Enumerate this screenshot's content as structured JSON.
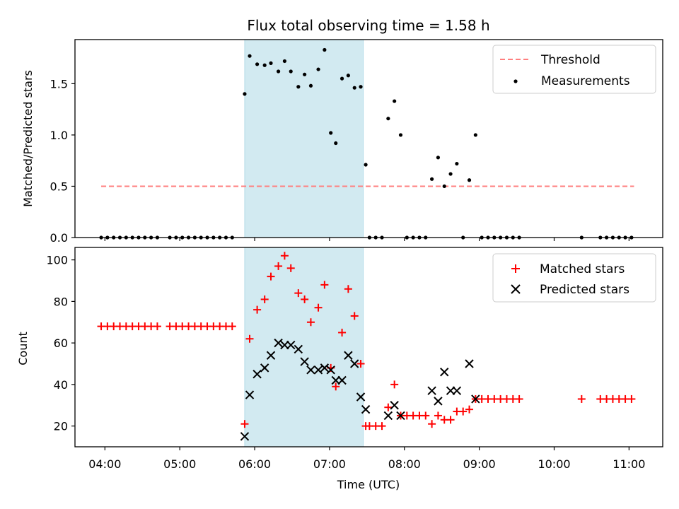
{
  "chart_data": {
    "type": "scatter",
    "title": "Flux total observing time = 1.58 h",
    "xlabel": "Time (UTC)",
    "x_ticks": [
      "04:00",
      "05:00",
      "06:00",
      "07:00",
      "08:00",
      "09:00",
      "10:00",
      "11:00"
    ],
    "x_range": [
      "03:36",
      "11:27"
    ],
    "shaded_interval": {
      "start": "05:52",
      "end": "07:27",
      "color": "#add8e6"
    },
    "top": {
      "ylabel": "Matched/Predicted stars",
      "ylim": [
        0,
        1.93
      ],
      "y_ticks": [
        "0.0",
        "0.5",
        "1.0",
        "1.5"
      ],
      "legend_position": "top-right",
      "threshold": {
        "name": "Threshold",
        "value": 0.5,
        "x_start": "03:57",
        "x_end": "11:04",
        "color": "#ff7f7f",
        "style": "dashed"
      },
      "measurements": {
        "name": "Measurements",
        "color": "#000000",
        "points": [
          [
            "03:57",
            0
          ],
          [
            "04:02",
            0
          ],
          [
            "04:07",
            0
          ],
          [
            "04:12",
            0
          ],
          [
            "04:17",
            0
          ],
          [
            "04:22",
            0
          ],
          [
            "04:27",
            0
          ],
          [
            "04:32",
            0
          ],
          [
            "04:37",
            0
          ],
          [
            "04:42",
            0
          ],
          [
            "04:52",
            0
          ],
          [
            "04:57",
            0
          ],
          [
            "05:02",
            0
          ],
          [
            "05:07",
            0
          ],
          [
            "05:12",
            0
          ],
          [
            "05:17",
            0
          ],
          [
            "05:22",
            0
          ],
          [
            "05:27",
            0
          ],
          [
            "05:32",
            0
          ],
          [
            "05:37",
            0
          ],
          [
            "05:42",
            0
          ],
          [
            "05:52",
            1.4
          ],
          [
            "05:56",
            1.77
          ],
          [
            "06:02",
            1.69
          ],
          [
            "06:08",
            1.68
          ],
          [
            "06:13",
            1.7
          ],
          [
            "06:19",
            1.62
          ],
          [
            "06:24",
            1.72
          ],
          [
            "06:29",
            1.62
          ],
          [
            "06:35",
            1.47
          ],
          [
            "06:40",
            1.59
          ],
          [
            "06:45",
            1.48
          ],
          [
            "06:51",
            1.64
          ],
          [
            "06:56",
            1.83
          ],
          [
            "07:01",
            1.02
          ],
          [
            "07:05",
            0.92
          ],
          [
            "07:10",
            1.55
          ],
          [
            "07:15",
            1.58
          ],
          [
            "07:20",
            1.46
          ],
          [
            "07:25",
            1.47
          ],
          [
            "07:29",
            0.71
          ],
          [
            "07:32",
            0
          ],
          [
            "07:37",
            0
          ],
          [
            "07:42",
            0
          ],
          [
            "07:47",
            1.16
          ],
          [
            "07:52",
            1.33
          ],
          [
            "07:57",
            1.0
          ],
          [
            "08:02",
            0
          ],
          [
            "08:07",
            0
          ],
          [
            "08:12",
            0
          ],
          [
            "08:17",
            0
          ],
          [
            "08:22",
            0.57
          ],
          [
            "08:27",
            0.78
          ],
          [
            "08:32",
            0.5
          ],
          [
            "08:37",
            0.62
          ],
          [
            "08:42",
            0.72
          ],
          [
            "08:47",
            0
          ],
          [
            "08:52",
            0.56
          ],
          [
            "08:57",
            1.0
          ],
          [
            "09:02",
            0
          ],
          [
            "09:07",
            0
          ],
          [
            "09:12",
            0
          ],
          [
            "09:17",
            0
          ],
          [
            "09:22",
            0
          ],
          [
            "09:27",
            0
          ],
          [
            "09:32",
            0
          ],
          [
            "10:22",
            0
          ],
          [
            "10:37",
            0
          ],
          [
            "10:42",
            0
          ],
          [
            "10:47",
            0
          ],
          [
            "10:52",
            0
          ],
          [
            "10:57",
            0
          ],
          [
            "11:02",
            0
          ]
        ]
      }
    },
    "bottom": {
      "ylabel": "Count",
      "ylim": [
        10,
        106
      ],
      "y_ticks": [
        "20",
        "40",
        "60",
        "80",
        "100"
      ],
      "legend_position": "top-right",
      "series": [
        {
          "name": "Matched stars",
          "marker": "plus",
          "color": "#ff0000",
          "points": [
            [
              "03:57",
              68
            ],
            [
              "04:02",
              68
            ],
            [
              "04:07",
              68
            ],
            [
              "04:12",
              68
            ],
            [
              "04:17",
              68
            ],
            [
              "04:22",
              68
            ],
            [
              "04:27",
              68
            ],
            [
              "04:32",
              68
            ],
            [
              "04:37",
              68
            ],
            [
              "04:42",
              68
            ],
            [
              "04:52",
              68
            ],
            [
              "04:57",
              68
            ],
            [
              "05:02",
              68
            ],
            [
              "05:07",
              68
            ],
            [
              "05:12",
              68
            ],
            [
              "05:17",
              68
            ],
            [
              "05:22",
              68
            ],
            [
              "05:27",
              68
            ],
            [
              "05:32",
              68
            ],
            [
              "05:37",
              68
            ],
            [
              "05:42",
              68
            ],
            [
              "05:52",
              21
            ],
            [
              "05:56",
              62
            ],
            [
              "06:02",
              76
            ],
            [
              "06:08",
              81
            ],
            [
              "06:13",
              92
            ],
            [
              "06:19",
              97
            ],
            [
              "06:24",
              102
            ],
            [
              "06:29",
              96
            ],
            [
              "06:35",
              84
            ],
            [
              "06:40",
              81
            ],
            [
              "06:45",
              70
            ],
            [
              "06:51",
              77
            ],
            [
              "06:56",
              88
            ],
            [
              "07:01",
              48
            ],
            [
              "07:05",
              39
            ],
            [
              "07:10",
              65
            ],
            [
              "07:15",
              86
            ],
            [
              "07:20",
              73
            ],
            [
              "07:25",
              50
            ],
            [
              "07:29",
              20
            ],
            [
              "07:32",
              20
            ],
            [
              "07:37",
              20
            ],
            [
              "07:42",
              20
            ],
            [
              "07:47",
              29
            ],
            [
              "07:52",
              40
            ],
            [
              "07:57",
              25
            ],
            [
              "08:02",
              25
            ],
            [
              "08:07",
              25
            ],
            [
              "08:12",
              25
            ],
            [
              "08:17",
              25
            ],
            [
              "08:22",
              21
            ],
            [
              "08:27",
              25
            ],
            [
              "08:32",
              23
            ],
            [
              "08:37",
              23
            ],
            [
              "08:42",
              27
            ],
            [
              "08:47",
              27
            ],
            [
              "08:52",
              28
            ],
            [
              "08:57",
              33
            ],
            [
              "09:02",
              33
            ],
            [
              "09:07",
              33
            ],
            [
              "09:12",
              33
            ],
            [
              "09:17",
              33
            ],
            [
              "09:22",
              33
            ],
            [
              "09:27",
              33
            ],
            [
              "09:32",
              33
            ],
            [
              "10:22",
              33
            ],
            [
              "10:37",
              33
            ],
            [
              "10:42",
              33
            ],
            [
              "10:47",
              33
            ],
            [
              "10:52",
              33
            ],
            [
              "10:57",
              33
            ],
            [
              "11:02",
              33
            ]
          ]
        },
        {
          "name": "Predicted stars",
          "marker": "x",
          "color": "#000000",
          "points": [
            [
              "05:52",
              15
            ],
            [
              "05:56",
              35
            ],
            [
              "06:02",
              45
            ],
            [
              "06:08",
              48
            ],
            [
              "06:13",
              54
            ],
            [
              "06:19",
              60
            ],
            [
              "06:24",
              59
            ],
            [
              "06:29",
              59
            ],
            [
              "06:35",
              57
            ],
            [
              "06:40",
              51
            ],
            [
              "06:45",
              47
            ],
            [
              "06:51",
              47
            ],
            [
              "06:56",
              48
            ],
            [
              "07:01",
              47
            ],
            [
              "07:05",
              42
            ],
            [
              "07:10",
              42
            ],
            [
              "07:15",
              54
            ],
            [
              "07:20",
              50
            ],
            [
              "07:25",
              34
            ],
            [
              "07:29",
              28
            ],
            [
              "07:47",
              25
            ],
            [
              "07:52",
              30
            ],
            [
              "07:57",
              25
            ],
            [
              "08:22",
              37
            ],
            [
              "08:27",
              32
            ],
            [
              "08:32",
              46
            ],
            [
              "08:37",
              37
            ],
            [
              "08:42",
              37
            ],
            [
              "08:52",
              50
            ],
            [
              "08:57",
              33
            ]
          ]
        }
      ]
    }
  }
}
